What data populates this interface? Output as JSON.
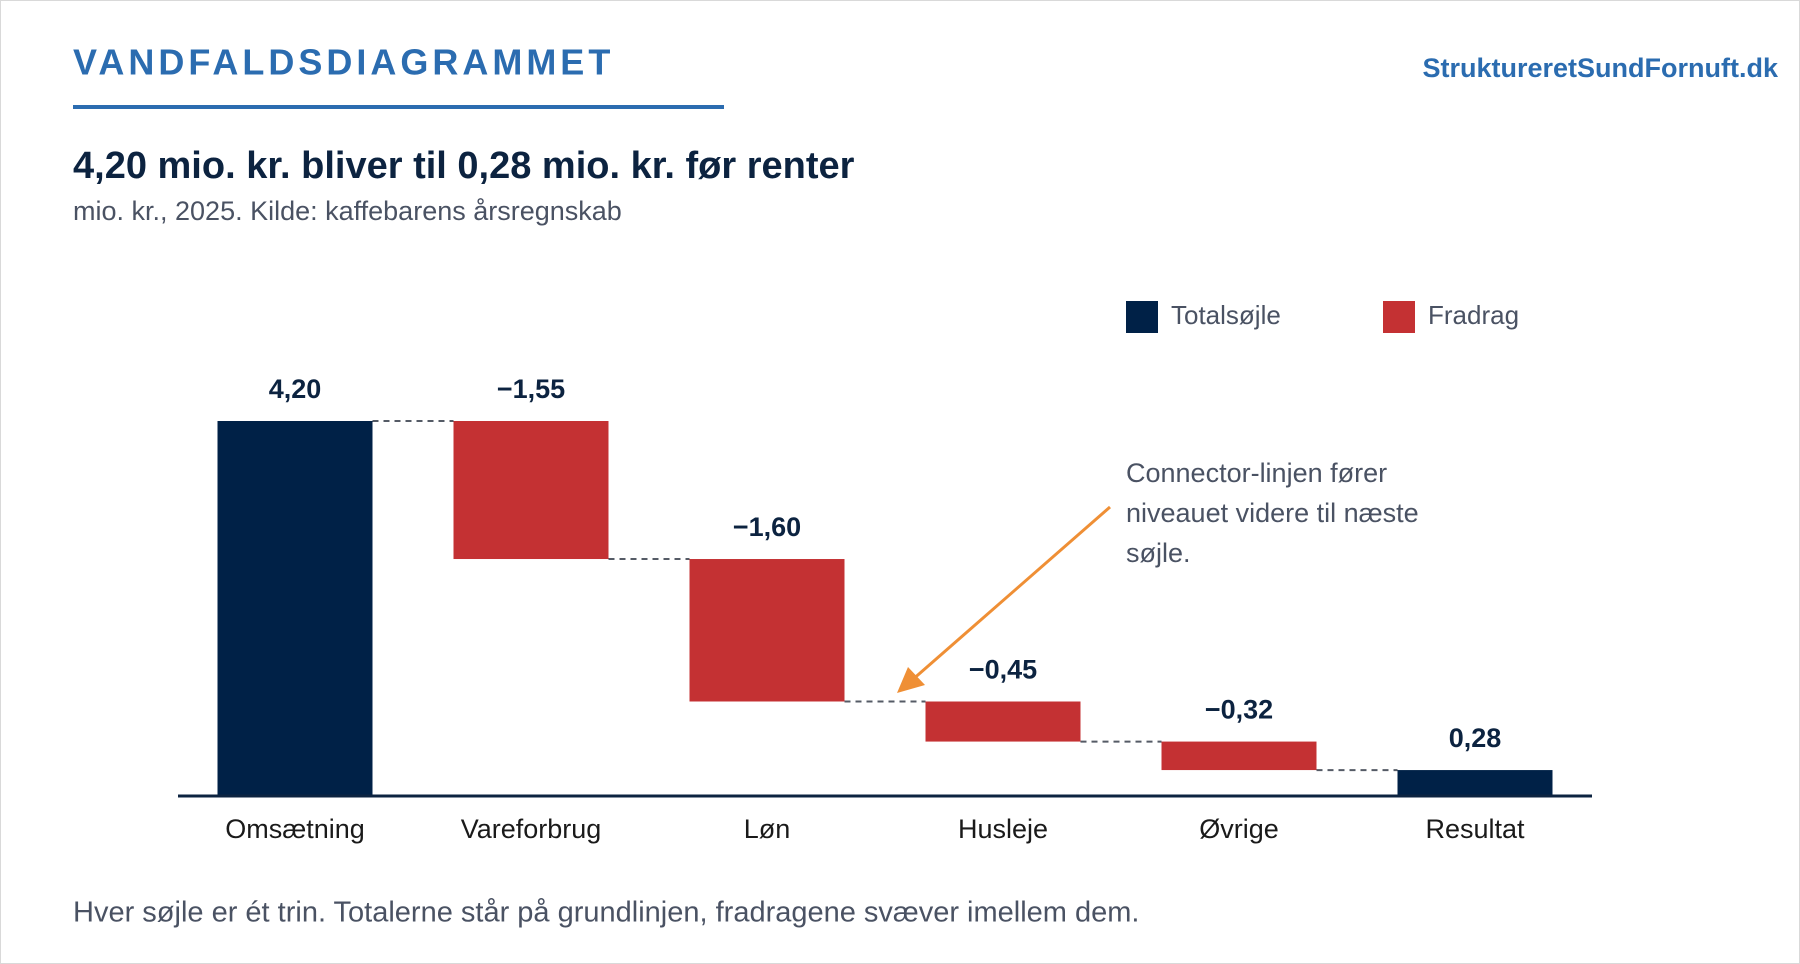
{
  "header": {
    "title": "VANDFALDSDIAGRAMMET",
    "site": "StruktureretSundFornuft.dk"
  },
  "chart_data": {
    "type": "waterfall",
    "title": "4,20 mio. kr. bliver til 0,28 mio. kr. før renter",
    "subtitle": "mio. kr., 2025. Kilde: kaffebarens årsregnskab",
    "categories": [
      "Omsætning",
      "Vareforbrug",
      "Løn",
      "Husleje",
      "Øvrige",
      "Resultat"
    ],
    "values": [
      4.2,
      -1.55,
      -1.6,
      -0.45,
      -0.32,
      0.28
    ],
    "value_labels": [
      "4,20",
      "−1,55",
      "−1,60",
      "−0,45",
      "−0,32",
      "0,28"
    ],
    "legend": [
      {
        "name": "Totalsøjle",
        "color": "#002147"
      },
      {
        "name": "Fradrag",
        "color": "#c43133"
      }
    ],
    "annotation": "Connector-linjen fører niveauet videre til næste søjle.",
    "annotation_color": "#ef8f35",
    "note": "Hver søjle er ét trin. Totalerne står på grundlinjen, fradragene svæver imellem dem."
  }
}
